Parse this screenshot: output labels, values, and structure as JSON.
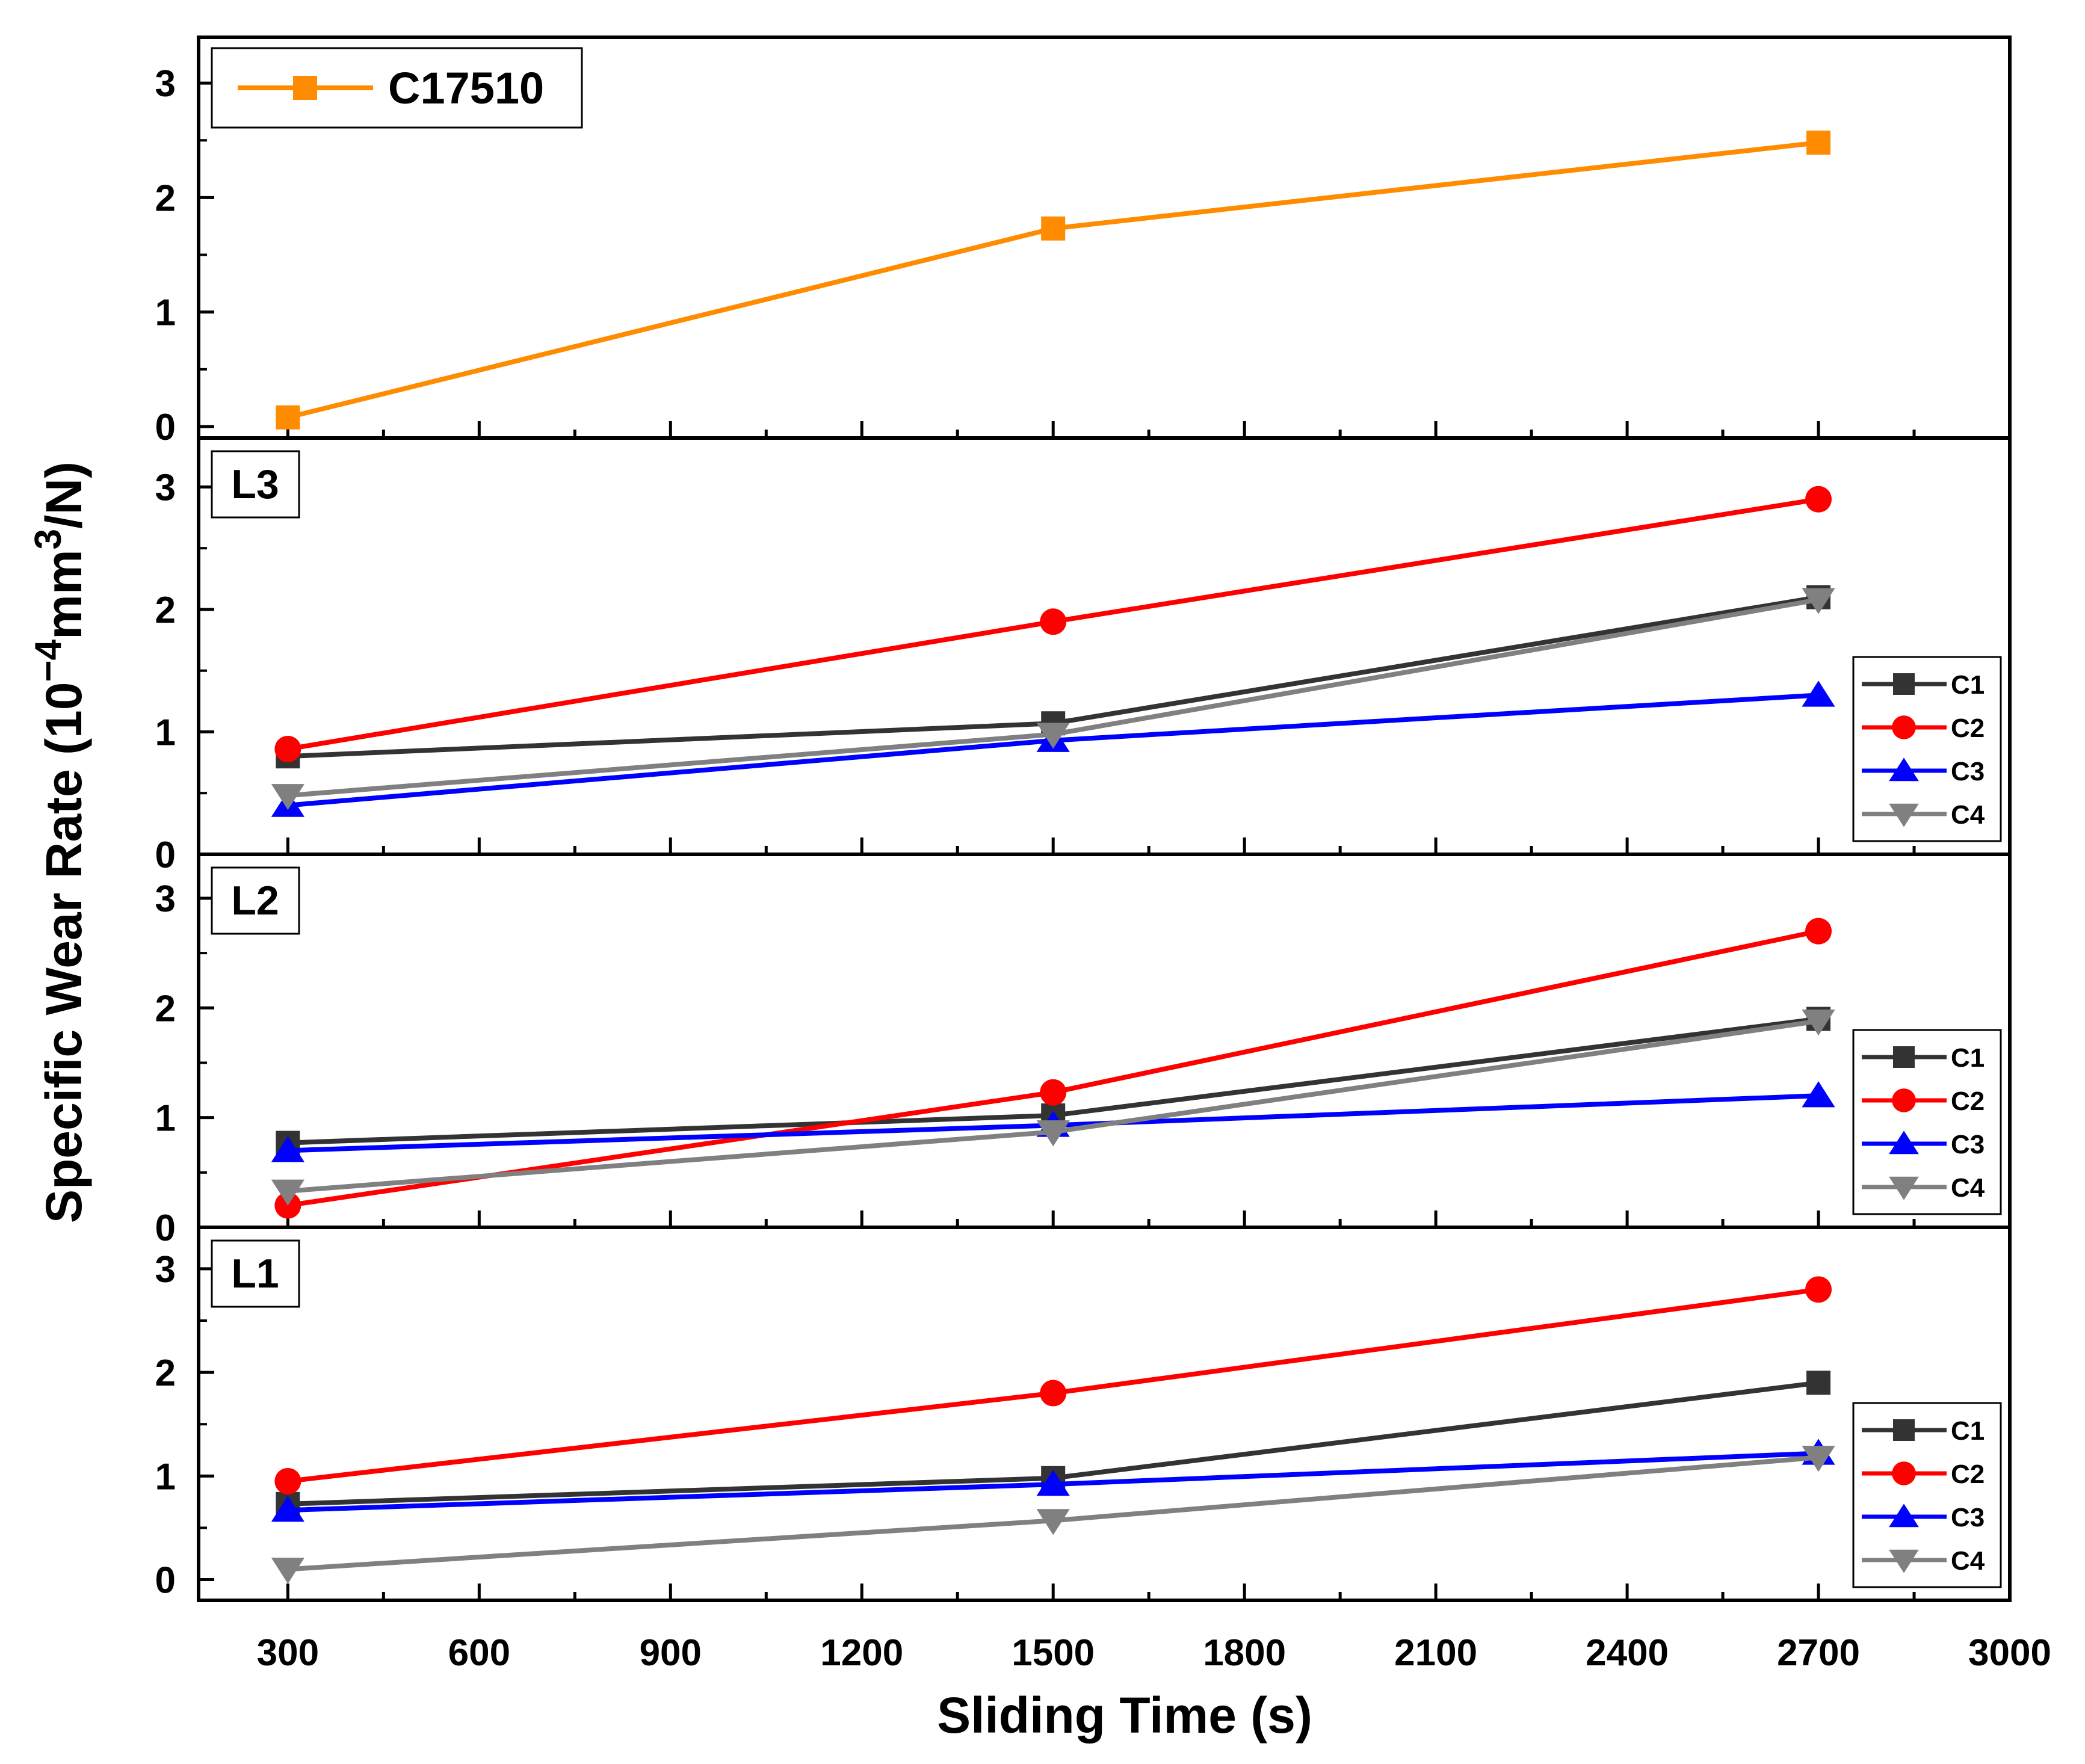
{
  "chart_data": {
    "type": "line",
    "shared_x": {
      "label": "Sliding Time (s)",
      "range": [
        160,
        3000
      ],
      "ticks": [
        "300",
        "600",
        "900",
        "1200",
        "1500",
        "1800",
        "2100",
        "2400",
        "2700",
        "3000"
      ]
    },
    "ylabel": {
      "text": "Specific Wear Rate (10",
      "sup1": "−4",
      "mid": "mm",
      "sup2": "3",
      "end": "/N)"
    },
    "panels": [
      {
        "id": "top",
        "label": "",
        "ylim": [
          -0.1,
          3.4
        ],
        "yticks": [
          "0",
          "1",
          "2",
          "3"
        ],
        "legend_position": "top-left",
        "series": [
          {
            "name": "C17510",
            "color": "#ff8c00",
            "marker": "square",
            "x": [
              300,
              1500,
              2700
            ],
            "values": [
              0.08,
              1.73,
              2.48
            ]
          }
        ]
      },
      {
        "id": "L3",
        "label": "L3",
        "ylim": [
          0,
          3.4
        ],
        "yticks": [
          "0",
          "1",
          "2",
          "3"
        ],
        "legend_position": "bottom-right",
        "series": [
          {
            "name": "C1",
            "color": "#333333",
            "marker": "square",
            "x": [
              300,
              1500,
              2700
            ],
            "values": [
              0.8,
              1.07,
              2.1
            ]
          },
          {
            "name": "C2",
            "color": "#ff0000",
            "marker": "circle",
            "x": [
              300,
              1500,
              2700
            ],
            "values": [
              0.86,
              1.9,
              2.9
            ]
          },
          {
            "name": "C3",
            "color": "#0000ff",
            "marker": "triangle-up",
            "x": [
              300,
              1500,
              2700
            ],
            "values": [
              0.4,
              0.93,
              1.3
            ]
          },
          {
            "name": "C4",
            "color": "#808080",
            "marker": "triangle-down",
            "x": [
              300,
              1500,
              2700
            ],
            "values": [
              0.48,
              0.98,
              2.08
            ]
          }
        ]
      },
      {
        "id": "L2",
        "label": "L2",
        "ylim": [
          0,
          3.4
        ],
        "yticks": [
          "0",
          "1",
          "2",
          "3"
        ],
        "legend_position": "bottom-right",
        "series": [
          {
            "name": "C1",
            "color": "#333333",
            "marker": "square",
            "x": [
              300,
              1500,
              2700
            ],
            "values": [
              0.77,
              1.02,
              1.9
            ]
          },
          {
            "name": "C2",
            "color": "#ff0000",
            "marker": "circle",
            "x": [
              300,
              1500,
              2700
            ],
            "values": [
              0.2,
              1.23,
              2.7
            ]
          },
          {
            "name": "C3",
            "color": "#0000ff",
            "marker": "triangle-up",
            "x": [
              300,
              1500,
              2700
            ],
            "values": [
              0.7,
              0.93,
              1.2
            ]
          },
          {
            "name": "C4",
            "color": "#808080",
            "marker": "triangle-down",
            "x": [
              300,
              1500,
              2700
            ],
            "values": [
              0.33,
              0.87,
              1.88
            ]
          }
        ]
      },
      {
        "id": "L1",
        "label": "L1",
        "ylim": [
          -0.2,
          3.4
        ],
        "yticks": [
          "0",
          "1",
          "2",
          "3"
        ],
        "legend_position": "bottom-right",
        "series": [
          {
            "name": "C1",
            "color": "#333333",
            "marker": "square",
            "x": [
              300,
              1500,
              2700
            ],
            "values": [
              0.73,
              0.98,
              1.9
            ]
          },
          {
            "name": "C2",
            "color": "#ff0000",
            "marker": "circle",
            "x": [
              300,
              1500,
              2700
            ],
            "values": [
              0.95,
              1.8,
              2.8
            ]
          },
          {
            "name": "C3",
            "color": "#0000ff",
            "marker": "triangle-up",
            "x": [
              300,
              1500,
              2700
            ],
            "values": [
              0.67,
              0.92,
              1.22
            ]
          },
          {
            "name": "C4",
            "color": "#808080",
            "marker": "triangle-down",
            "x": [
              300,
              1500,
              2700
            ],
            "values": [
              0.1,
              0.57,
              1.18
            ]
          }
        ]
      }
    ]
  }
}
